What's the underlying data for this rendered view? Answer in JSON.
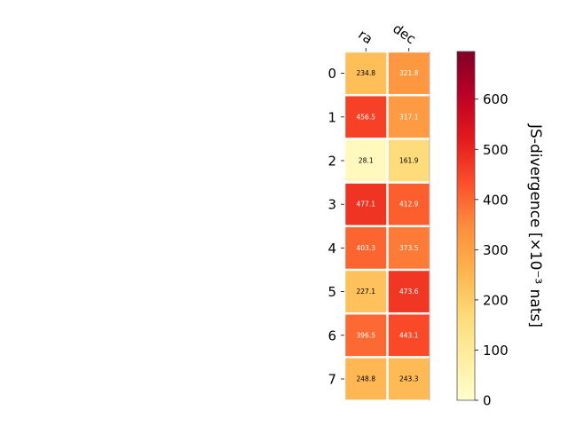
{
  "chart_data": {
    "type": "heatmap",
    "columns": [
      "ra",
      "dec"
    ],
    "rows": [
      "0",
      "1",
      "2",
      "3",
      "4",
      "5",
      "6",
      "7"
    ],
    "values": [
      [
        234.8,
        321.8
      ],
      [
        456.5,
        317.1
      ],
      [
        28.1,
        161.9
      ],
      [
        477.1,
        412.9
      ],
      [
        403.3,
        373.5
      ],
      [
        227.1,
        473.6
      ],
      [
        396.5,
        443.1
      ],
      [
        248.8,
        243.3
      ]
    ],
    "colorbar": {
      "label": "JS-divergence [×10⁻³ nats]",
      "ticks": [
        0,
        100,
        200,
        300,
        400,
        500,
        600
      ],
      "range": [
        0,
        695
      ],
      "colormap": "YlOrRd"
    },
    "grid": false
  }
}
